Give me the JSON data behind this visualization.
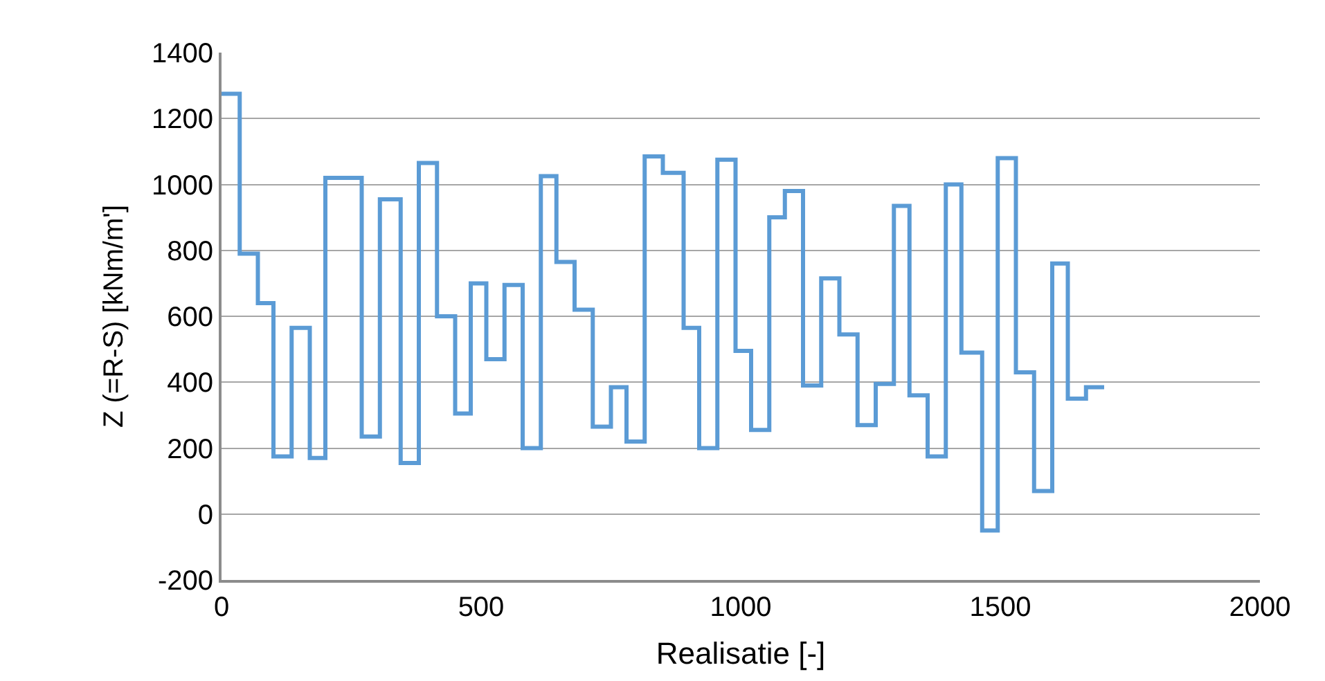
{
  "chart_data": {
    "type": "line",
    "xlabel": "Realisatie [-]",
    "ylabel": "Z (=R-S) [kNm/m']",
    "x": [
      0,
      35,
      35,
      70,
      70,
      100,
      100,
      135,
      135,
      170,
      170,
      200,
      200,
      270,
      270,
      305,
      305,
      345,
      345,
      380,
      380,
      415,
      415,
      450,
      450,
      480,
      480,
      510,
      510,
      545,
      545,
      580,
      580,
      615,
      615,
      645,
      645,
      680,
      680,
      715,
      715,
      750,
      750,
      780,
      780,
      815,
      815,
      850,
      850,
      890,
      890,
      920,
      920,
      955,
      955,
      990,
      990,
      1020,
      1020,
      1055,
      1055,
      1085,
      1085,
      1120,
      1120,
      1155,
      1155,
      1190,
      1190,
      1225,
      1225,
      1260,
      1260,
      1295,
      1295,
      1325,
      1325,
      1360,
      1360,
      1395,
      1395,
      1425,
      1425,
      1465,
      1465,
      1495,
      1495,
      1530,
      1530,
      1565,
      1565,
      1600,
      1600,
      1630,
      1630,
      1665,
      1665,
      1700
    ],
    "series": [
      {
        "color": "#5b9bd5",
        "values": [
          1275,
          1275,
          790,
          790,
          640,
          640,
          175,
          175,
          565,
          565,
          170,
          170,
          1020,
          1020,
          235,
          235,
          955,
          955,
          155,
          155,
          1065,
          1065,
          600,
          600,
          305,
          305,
          700,
          700,
          470,
          470,
          695,
          695,
          200,
          200,
          1025,
          1025,
          765,
          765,
          620,
          620,
          265,
          265,
          385,
          385,
          220,
          220,
          1085,
          1085,
          1035,
          1035,
          565,
          565,
          200,
          200,
          1075,
          1075,
          495,
          495,
          255,
          255,
          900,
          900,
          980,
          980,
          390,
          390,
          715,
          715,
          545,
          545,
          270,
          270,
          395,
          395,
          935,
          935,
          360,
          360,
          175,
          175,
          1000,
          1000,
          490,
          490,
          -50,
          -50,
          1080,
          1080,
          430,
          430,
          70,
          70,
          760,
          760,
          350,
          350,
          385,
          385
        ]
      }
    ],
    "xlim": [
      0,
      2000
    ],
    "xticks": [
      0,
      500,
      1000,
      1500,
      2000
    ],
    "ylim": [
      -200,
      1400
    ],
    "yticks": [
      -200,
      0,
      200,
      400,
      600,
      800,
      1000,
      1200,
      1400
    ],
    "grid": "y",
    "legend": false,
    "marker": "none",
    "line_style": "solid"
  }
}
